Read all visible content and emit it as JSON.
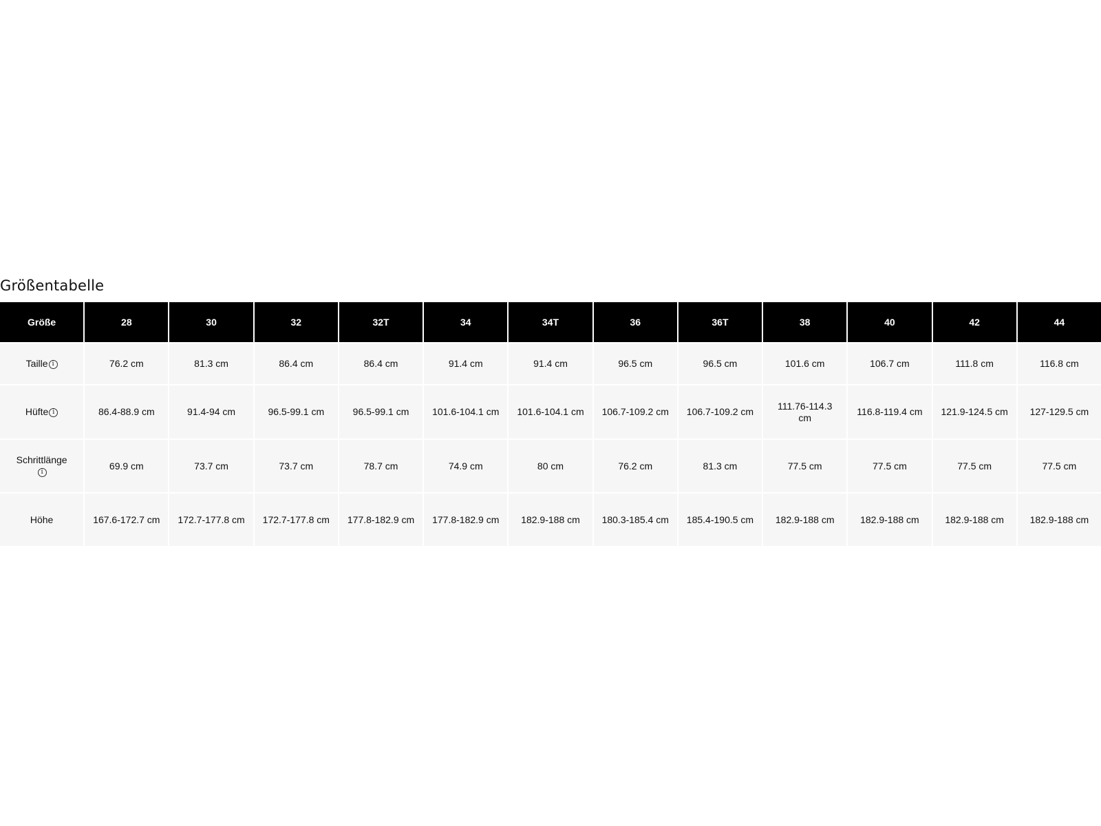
{
  "title": "Größentabelle",
  "header": [
    "Größe",
    "28",
    "30",
    "32",
    "32T",
    "34",
    "34T",
    "36",
    "36T",
    "38",
    "40",
    "42",
    "44"
  ],
  "rows": [
    {
      "label": "Taille",
      "info": true,
      "values": [
        "76.2 cm",
        "81.3 cm",
        "86.4 cm",
        "86.4 cm",
        "91.4 cm",
        "91.4 cm",
        "96.5 cm",
        "96.5 cm",
        "101.6 cm",
        "106.7 cm",
        "111.8 cm",
        "116.8 cm"
      ]
    },
    {
      "label": "Hüfte",
      "info": true,
      "values": [
        "86.4-88.9 cm",
        "91.4-94 cm",
        "96.5-99.1 cm",
        "96.5-99.1 cm",
        "101.6-104.1 cm",
        "101.6-104.1 cm",
        "106.7-109.2 cm",
        "106.7-109.2 cm",
        "111.76-114.3 cm",
        "116.8-119.4 cm",
        "121.9-124.5 cm",
        "127-129.5 cm"
      ]
    },
    {
      "label": "Schrittlänge",
      "info": true,
      "values": [
        "69.9 cm",
        "73.7 cm",
        "73.7 cm",
        "78.7 cm",
        "74.9 cm",
        "80 cm",
        "76.2 cm",
        "81.3 cm",
        "77.5 cm",
        "77.5 cm",
        "77.5 cm",
        "77.5 cm"
      ]
    },
    {
      "label": "Höhe",
      "info": false,
      "values": [
        "167.6-172.7 cm",
        "172.7-177.8 cm",
        "172.7-177.8 cm",
        "177.8-182.9 cm",
        "177.8-182.9 cm",
        "182.9-188 cm",
        "180.3-185.4 cm",
        "185.4-190.5 cm",
        "182.9-188 cm",
        "182.9-188 cm",
        "182.9-188 cm",
        "182.9-188 cm"
      ]
    }
  ],
  "icons": {
    "info": "info-circle-icon"
  }
}
